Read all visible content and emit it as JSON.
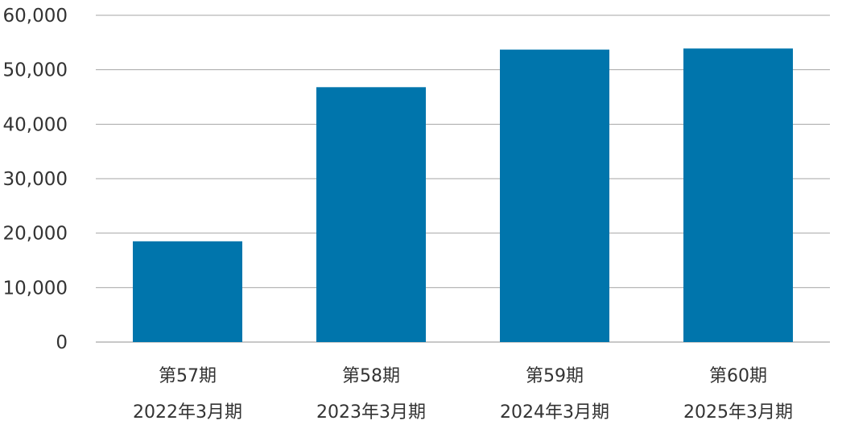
{
  "chart_data": {
    "type": "bar",
    "categories": [
      {
        "period": "第57期",
        "fiscal_year": "2022年3月期"
      },
      {
        "period": "第58期",
        "fiscal_year": "2023年3月期"
      },
      {
        "period": "第59期",
        "fiscal_year": "2024年3月期"
      },
      {
        "period": "第60期",
        "fiscal_year": "2025年3月期"
      }
    ],
    "values": [
      18500,
      46800,
      53700,
      53900
    ],
    "ylim": [
      0,
      60000
    ],
    "yticks": [
      "0",
      "10,000",
      "20,000",
      "30,000",
      "40,000",
      "50,000",
      "60,000"
    ],
    "grid": true,
    "bar_color": "#0075AC",
    "grid_color": "#A6A6A6",
    "title": "",
    "xlabel": "",
    "ylabel": ""
  }
}
